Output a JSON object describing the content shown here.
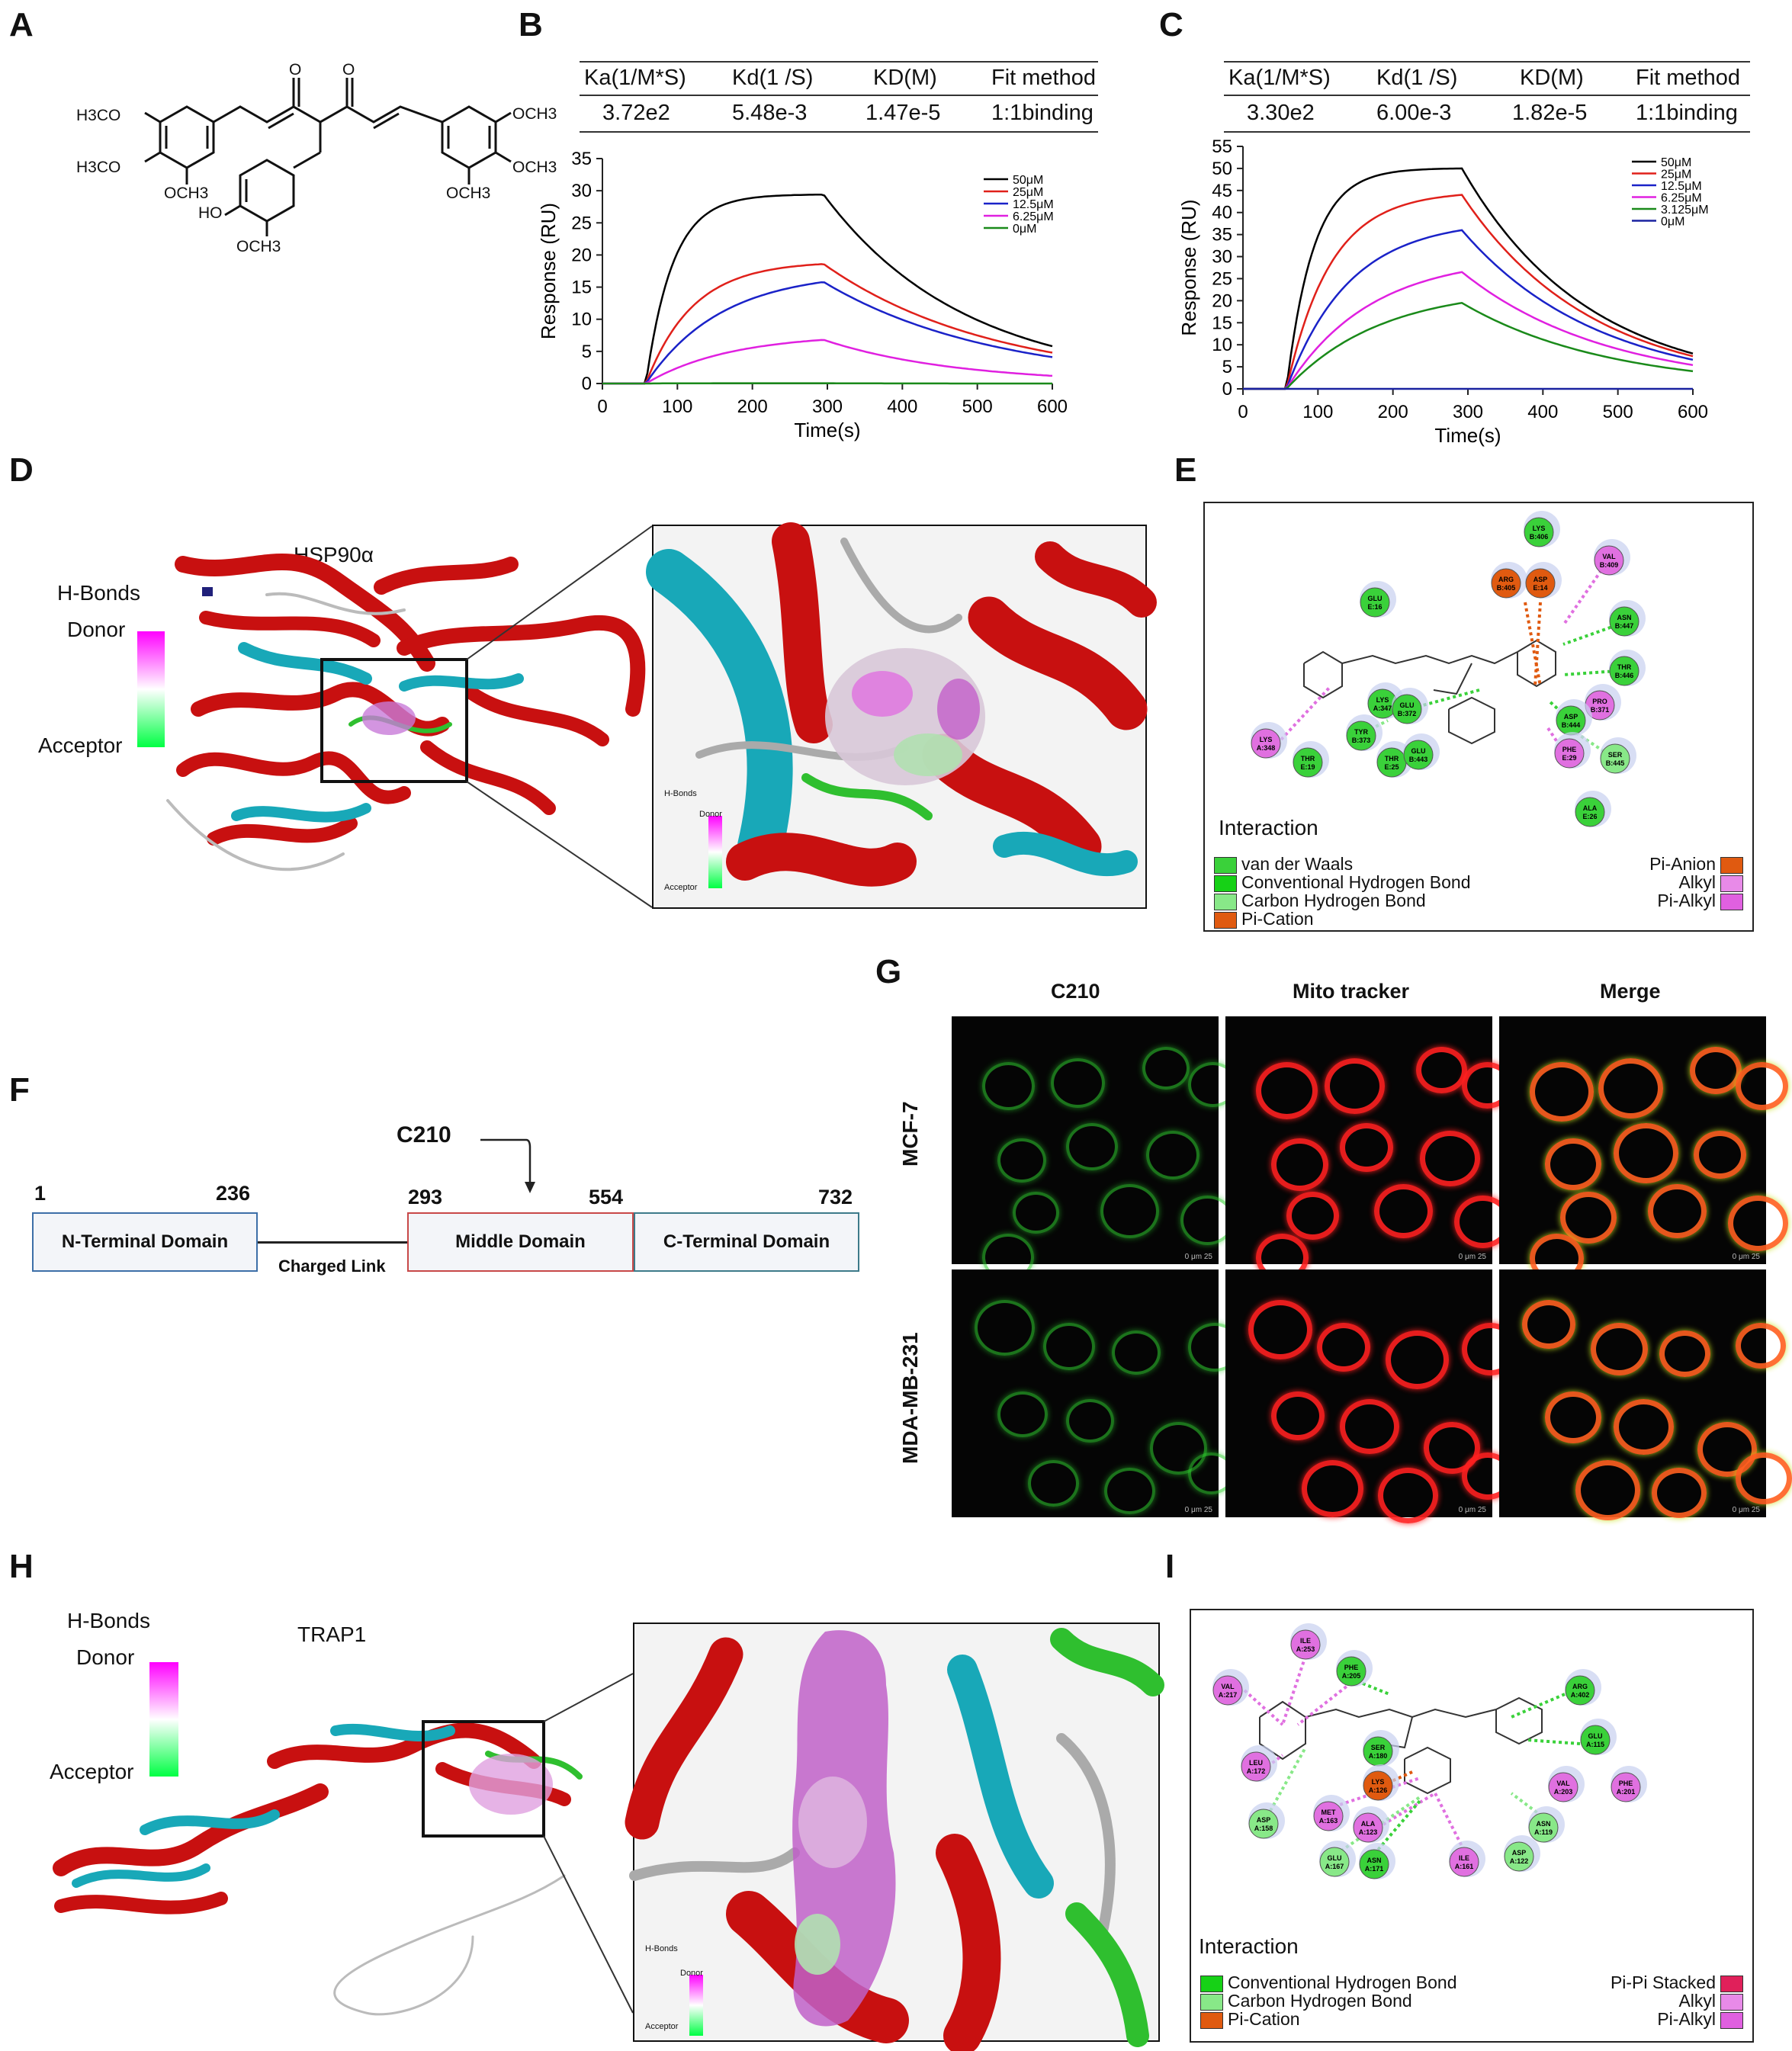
{
  "panel_labels": {
    "A": "A",
    "B": "B",
    "C": "C",
    "D": "D",
    "E": "E",
    "F": "F",
    "G": "G",
    "H": "H",
    "I": "I"
  },
  "structure_A": {
    "groups": [
      "H3CO",
      "H3CO",
      "OCH3",
      "OCH3",
      "OCH3",
      "HO",
      "OCH3",
      "OCH3"
    ],
    "ketones": [
      "O",
      "O"
    ]
  },
  "table_B": {
    "headers": [
      "Ka(1/M*S)",
      "Kd(1 /S)",
      "KD(M)",
      "Fit method"
    ],
    "values": [
      "3.72e2",
      "5.48e-3",
      "1.47e-5",
      "1:1binding"
    ]
  },
  "table_C": {
    "headers": [
      "Ka(1/M*S)",
      "Kd(1 /S)",
      "KD(M)",
      "Fit method"
    ],
    "values": [
      "3.30e2",
      "6.00e-3",
      "1.82e-5",
      "1:1binding"
    ]
  },
  "chart_data": [
    {
      "type": "line",
      "panel": "B",
      "xlabel": "Time(s)",
      "ylabel": "Response (RU)",
      "xlim": [
        0,
        600
      ],
      "ylim": [
        0,
        35
      ],
      "xticks": [
        0,
        100,
        200,
        300,
        400,
        500,
        600
      ],
      "yticks": [
        0,
        5,
        10,
        15,
        20,
        25,
        30,
        35
      ],
      "injection_start": 58,
      "injection_end": 295,
      "series": [
        {
          "name": "50μM",
          "color": "#000000",
          "peak": 29.4,
          "end": 5.8,
          "kon": 0.028
        },
        {
          "name": "25μM",
          "color": "#e0201a",
          "peak": 18.6,
          "end": 4.8,
          "kon": 0.016
        },
        {
          "name": "12.5μM",
          "color": "#1a22c8",
          "peak": 15.8,
          "end": 4.1,
          "kon": 0.01
        },
        {
          "name": "6.25μM",
          "color": "#e020e0",
          "peak": 6.8,
          "end": 1.2,
          "kon": 0.009
        },
        {
          "name": "0μM",
          "color": "#1a8a1a",
          "peak": 0.05,
          "end": 0.0,
          "kon": 0.02
        }
      ]
    },
    {
      "type": "line",
      "panel": "C",
      "xlabel": "Time(s)",
      "ylabel": "Response (RU)",
      "xlim": [
        0,
        600
      ],
      "ylim": [
        0,
        55
      ],
      "xticks": [
        0,
        100,
        200,
        300,
        400,
        500,
        600
      ],
      "yticks": [
        0,
        5,
        10,
        15,
        20,
        25,
        30,
        35,
        40,
        45,
        50,
        55
      ],
      "injection_start": 58,
      "injection_end": 292,
      "series": [
        {
          "name": "50μM",
          "color": "#000000",
          "peak": 50.0,
          "end": 8.0,
          "kon": 0.028
        },
        {
          "name": "25μM",
          "color": "#e0201a",
          "peak": 44.0,
          "end": 7.4,
          "kon": 0.017
        },
        {
          "name": "12.5μM",
          "color": "#1a22c8",
          "peak": 36.0,
          "end": 6.6,
          "kon": 0.012
        },
        {
          "name": "6.25μM",
          "color": "#e020e0",
          "peak": 26.5,
          "end": 5.4,
          "kon": 0.009
        },
        {
          "name": "3.125μM",
          "color": "#1a8a1a",
          "peak": 19.5,
          "end": 4.0,
          "kon": 0.008
        },
        {
          "name": "0μM",
          "color": "#1a22a0",
          "peak": 0.0,
          "end": 0.0,
          "kon": 0.02
        }
      ]
    }
  ],
  "panel_D": {
    "title": "HSP90α",
    "hbonds_title": "H-Bonds",
    "donor": "Donor",
    "acceptor": "Acceptor",
    "inset_hbonds": "H-Bonds",
    "inset_donor": "Donor",
    "inset_acceptor": "Acceptor"
  },
  "panel_E": {
    "residues": [
      "LYS B:406",
      "VAL B:409",
      "ARG B:405",
      "ASP E:14",
      "GLU E:16",
      "ASN B:447",
      "THR B:446",
      "LYS A:347",
      "GLU B:372",
      "PRO B:371",
      "ASP B:444",
      "LYS A:348",
      "TYR B:373",
      "THR E:19",
      "THR E:25",
      "GLU B:443",
      "PHE E:29",
      "SER B:445",
      "ALA E:26"
    ],
    "legend_title": "Interaction",
    "legend_left": [
      "van der Waals",
      "Conventional Hydrogen Bond",
      "Carbon Hydrogen Bond",
      "Pi-Cation"
    ],
    "legend_right": [
      "Pi-Anion",
      "Alkyl",
      "Pi-Alkyl"
    ],
    "legend_colors_left": [
      "#3ad13a",
      "#16d116",
      "#88e888",
      "#e05a10"
    ],
    "legend_colors_right": [
      "#e05a10",
      "#e88ae8",
      "#e060e0"
    ]
  },
  "panel_F": {
    "label_c210": "C210",
    "pos": [
      "1",
      "236",
      "293",
      "554",
      "732"
    ],
    "domains": [
      "N-Terminal Domain",
      "Middle Domain",
      "C-Terminal Domain"
    ],
    "link": "Charged Link"
  },
  "panel_G": {
    "columns": [
      "C210",
      "Mito tracker",
      "Merge"
    ],
    "column_colors": [
      "#1f6a3a",
      "#e01010",
      "#000000"
    ],
    "rows": [
      "MCF-7",
      "MDA-MB-231"
    ],
    "scale_text": "0    μm    25"
  },
  "panel_H": {
    "title": "TRAP1",
    "hbonds_title": "H-Bonds",
    "donor": "Donor",
    "acceptor": "Acceptor",
    "inset_hbonds": "H-Bonds",
    "inset_donor": "Donor",
    "inset_acceptor": "Acceptor"
  },
  "panel_I": {
    "residues": [
      "ILE A:253",
      "PHE A:205",
      "VAL A:217",
      "ARG A:402",
      "GLU A:115",
      "SER A:180",
      "LEU A:172",
      "LYS A:126",
      "VAL A:203",
      "PHE A:201",
      "ASP A:158",
      "MET A:163",
      "ALA A:123",
      "ASN A:119",
      "ASP A:122",
      "GLU A:167",
      "ASN A:171",
      "ILE A:161"
    ],
    "legend_title": "Interaction",
    "legend_left": [
      "Conventional Hydrogen Bond",
      "Carbon Hydrogen Bond",
      "Pi-Cation"
    ],
    "legend_right": [
      "Pi-Pi Stacked",
      "Alkyl",
      "Pi-Alkyl"
    ],
    "legend_colors_left": [
      "#16d116",
      "#88e888",
      "#e05a10"
    ],
    "legend_colors_right": [
      "#e0205a",
      "#e88ae8",
      "#e060e0"
    ]
  }
}
